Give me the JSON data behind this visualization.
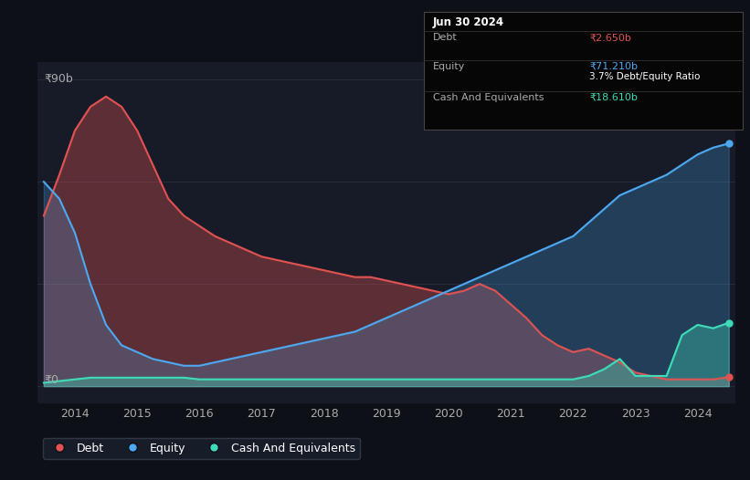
{
  "bg_color": "#0d1117",
  "plot_bg_color": "#161b27",
  "grid_color": "#2a2f3e",
  "debt_color": "#e05252",
  "equity_color": "#4da8f0",
  "cash_color": "#3ddbb8",
  "ylabel_text": "₹90b",
  "y0_text": "₹0",
  "x_ticks": [
    "2014",
    "2015",
    "2016",
    "2017",
    "2018",
    "2019",
    "2020",
    "2021",
    "2022",
    "2023",
    "2024"
  ],
  "tooltip_title": "Jun 30 2024",
  "tooltip_debt_label": "Debt",
  "tooltip_debt_value": "₹2.650b",
  "tooltip_equity_label": "Equity",
  "tooltip_equity_value": "₹71.210b",
  "tooltip_ratio": "3.7% Debt/Equity Ratio",
  "tooltip_cash_label": "Cash And Equivalents",
  "tooltip_cash_value": "₹18.610b",
  "years": [
    2013.5,
    2013.75,
    2014.0,
    2014.25,
    2014.5,
    2014.75,
    2015.0,
    2015.25,
    2015.5,
    2015.75,
    2016.0,
    2016.25,
    2016.5,
    2016.75,
    2017.0,
    2017.25,
    2017.5,
    2017.75,
    2018.0,
    2018.25,
    2018.5,
    2018.75,
    2019.0,
    2019.25,
    2019.5,
    2019.75,
    2020.0,
    2020.25,
    2020.5,
    2020.75,
    2021.0,
    2021.25,
    2021.5,
    2021.75,
    2022.0,
    2022.25,
    2022.5,
    2022.75,
    2023.0,
    2023.25,
    2023.5,
    2023.75,
    2024.0,
    2024.25,
    2024.5
  ],
  "debt": [
    50,
    62,
    75,
    82,
    85,
    82,
    75,
    65,
    55,
    50,
    47,
    44,
    42,
    40,
    38,
    37,
    36,
    35,
    34,
    33,
    32,
    32,
    31,
    30,
    29,
    28,
    27,
    28,
    30,
    28,
    24,
    20,
    15,
    12,
    10,
    11,
    9,
    7,
    4,
    3,
    2,
    2,
    2,
    2,
    2.65
  ],
  "equity": [
    60,
    55,
    45,
    30,
    18,
    12,
    10,
    8,
    7,
    6,
    6,
    7,
    8,
    9,
    10,
    11,
    12,
    13,
    14,
    15,
    16,
    18,
    20,
    22,
    24,
    26,
    28,
    30,
    32,
    34,
    36,
    38,
    40,
    42,
    44,
    48,
    52,
    56,
    58,
    60,
    62,
    65,
    68,
    70,
    71.21
  ],
  "cash": [
    1,
    1.5,
    2,
    2.5,
    2.5,
    2.5,
    2.5,
    2.5,
    2.5,
    2.5,
    2,
    2,
    2,
    2,
    2,
    2,
    2,
    2,
    2,
    2,
    2,
    2,
    2,
    2,
    2,
    2,
    2,
    2,
    2,
    2,
    2,
    2,
    2,
    2,
    2,
    3,
    5,
    8,
    3,
    3,
    3,
    15,
    18,
    17,
    18.61
  ]
}
